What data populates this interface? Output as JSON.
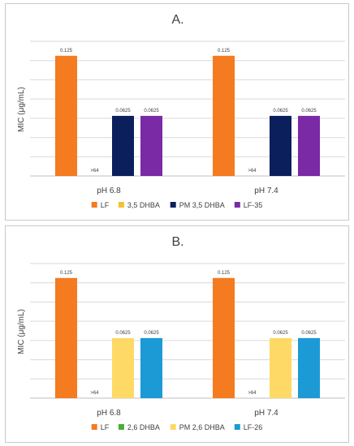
{
  "chart_data": [
    {
      "type": "bar",
      "title": "A.",
      "ylabel": "MIC (μg/mL)",
      "categories": [
        "pH 6.8",
        "pH 7.4"
      ],
      "ylim": [
        0,
        0.14
      ],
      "grid": true,
      "legend_position": "bottom",
      "series": [
        {
          "name": "LF",
          "color": "#F47B20",
          "values": [
            0.125,
            0.125
          ],
          "labels": [
            "0.125",
            "0.125"
          ]
        },
        {
          "name": "3,5 DHBA",
          "color": "#F2C233",
          "values": [
            null,
            null
          ],
          "labels": [
            ">64",
            ">64"
          ]
        },
        {
          "name": "PM 3,5 DHBA",
          "color": "#0B1F5C",
          "values": [
            0.0625,
            0.0625
          ],
          "labels": [
            "0.0625",
            "0.0625"
          ]
        },
        {
          "name": "LF-35",
          "color": "#7B2AA6",
          "values": [
            0.0625,
            0.0625
          ],
          "labels": [
            "0.0625",
            "0.0625"
          ]
        }
      ]
    },
    {
      "type": "bar",
      "title": "B.",
      "ylabel": "MIC (μg/mL)",
      "categories": [
        "pH 6.8",
        "pH 7.4"
      ],
      "ylim": [
        0,
        0.14
      ],
      "grid": true,
      "legend_position": "bottom",
      "series": [
        {
          "name": "LF",
          "color": "#F47B20",
          "values": [
            0.125,
            0.125
          ],
          "labels": [
            "0.125",
            "0.125"
          ]
        },
        {
          "name": "2,6 DHBA",
          "color": "#4DAA3C",
          "values": [
            null,
            null
          ],
          "labels": [
            ">64",
            ">64"
          ]
        },
        {
          "name": "PM 2,6 DHBA",
          "color": "#FFD966",
          "values": [
            0.0625,
            0.0625
          ],
          "labels": [
            "0.0625",
            "0.0625"
          ]
        },
        {
          "name": "LF-26",
          "color": "#1C9AD6",
          "values": [
            0.0625,
            0.0625
          ],
          "labels": [
            "0.0625",
            "0.0625"
          ]
        }
      ]
    }
  ]
}
